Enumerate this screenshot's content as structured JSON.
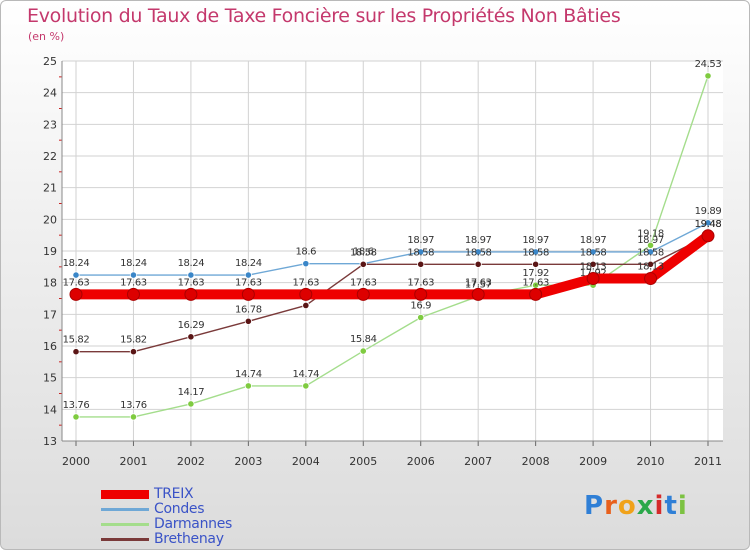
{
  "title": "Evolution du Taux de Taxe Foncière sur les Propriétés Non Bâties",
  "unit": "(en %)",
  "logo": {
    "letters": [
      "P",
      "r",
      "o",
      "x",
      "i",
      "t",
      "i"
    ],
    "colors": [
      "#2f7fd6",
      "#e8601c",
      "#f0a21a",
      "#2aa84a",
      "#d52b2b",
      "#2f7fd6",
      "#7cc242"
    ]
  },
  "chart_data": {
    "type": "line",
    "x": [
      2000,
      2001,
      2002,
      2003,
      2004,
      2005,
      2006,
      2007,
      2008,
      2009,
      2010,
      2011
    ],
    "ylim": [
      13,
      25
    ],
    "yticks": [
      13,
      14,
      15,
      16,
      17,
      18,
      19,
      20,
      21,
      22,
      23,
      24,
      25
    ],
    "grid": true,
    "legend_position": "bottom-left",
    "series": [
      {
        "name": "Condes",
        "color": "#6fa8d6",
        "marker": "#3a86c8",
        "values": [
          18.24,
          18.24,
          18.24,
          18.24,
          18.6,
          18.6,
          18.97,
          18.97,
          18.97,
          18.97,
          18.97,
          19.89
        ],
        "labels": [
          "18.24",
          "18.24",
          "18.24",
          "18.24",
          "18.6",
          "18.6",
          "18.97",
          "18.97",
          "18.97",
          "18.97",
          "18.97",
          "19.89"
        ]
      },
      {
        "name": "Darmannes",
        "color": "#a4dd8c",
        "marker": "#7fcb40",
        "values": [
          13.76,
          13.76,
          14.17,
          14.74,
          14.74,
          15.84,
          16.9,
          17.57,
          17.92,
          17.92,
          19.18,
          24.53
        ],
        "labels": [
          "13.76",
          "13.76",
          "14.17",
          "14.74",
          "14.74",
          "15.84",
          "16.9",
          "17.57",
          "17.92",
          "17.92",
          "19.18",
          "24.53"
        ]
      },
      {
        "name": "Brethenay",
        "color": "#7a3a3a",
        "marker": "#5a1515",
        "values": [
          15.82,
          15.82,
          16.29,
          16.78,
          17.28,
          18.58,
          18.58,
          18.58,
          18.58,
          18.58,
          18.58,
          19.48
        ],
        "labels": [
          "15.82",
          "15.82",
          "16.29",
          "16.78",
          "17.28",
          "18.58",
          "18.58",
          "18.58",
          "18.58",
          "18.58",
          "18.58",
          "19.48"
        ]
      },
      {
        "name": "TREIX",
        "color": "#ee0000",
        "marker": "#dd0000",
        "thick": true,
        "values": [
          17.63,
          17.63,
          17.63,
          17.63,
          17.63,
          17.63,
          17.63,
          17.63,
          17.63,
          18.13,
          18.13,
          19.48
        ],
        "labels": [
          "17.63",
          "17.63",
          "17.63",
          "17.63",
          "17.63",
          "17.63",
          "17.63",
          "17.63",
          "17.63",
          "18.13",
          "18.13",
          "19.48"
        ]
      }
    ]
  },
  "legend": [
    {
      "label": "TREIX",
      "color": "#ee0000",
      "thick": true
    },
    {
      "label": "Condes",
      "color": "#6fa8d6"
    },
    {
      "label": "Darmannes",
      "color": "#a4dd8c"
    },
    {
      "label": "Brethenay",
      "color": "#7a3a3a"
    }
  ]
}
